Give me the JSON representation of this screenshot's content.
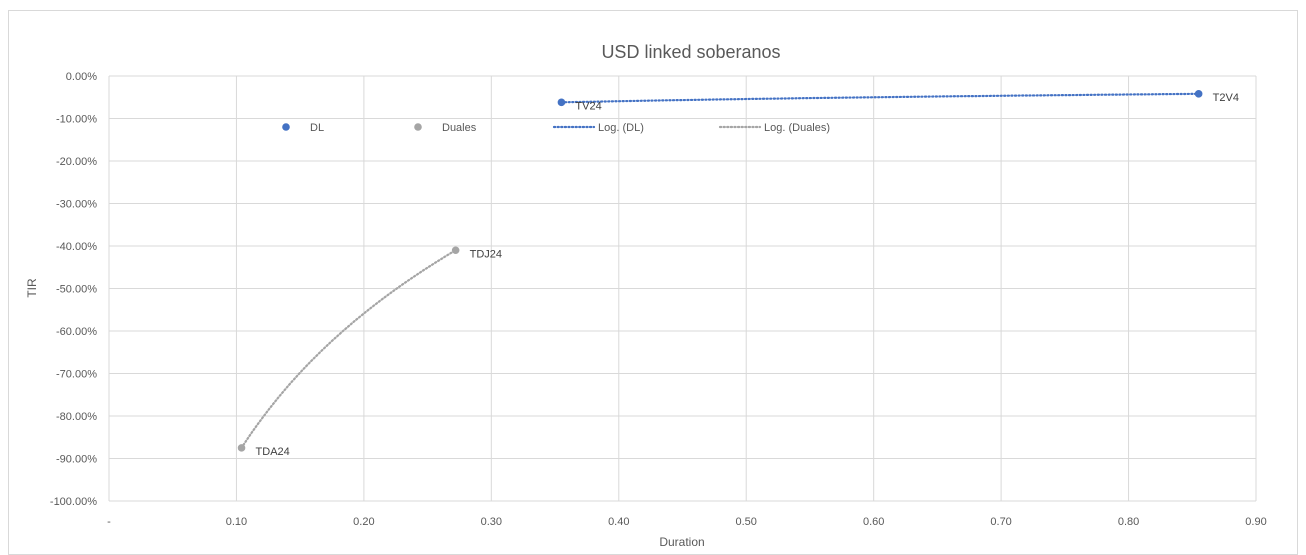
{
  "chart_data": {
    "type": "scatter",
    "title": "USD linked soberanos",
    "xlabel": "Duration",
    "ylabel": "TIR",
    "xlim": [
      0,
      0.9
    ],
    "ylim": [
      -1.0,
      0.0
    ],
    "x_ticks": [
      {
        "value": 0,
        "label": "-"
      },
      {
        "value": 0.1,
        "label": "0.10"
      },
      {
        "value": 0.2,
        "label": "0.20"
      },
      {
        "value": 0.3,
        "label": "0.30"
      },
      {
        "value": 0.4,
        "label": "0.40"
      },
      {
        "value": 0.5,
        "label": "0.50"
      },
      {
        "value": 0.6,
        "label": "0.60"
      },
      {
        "value": 0.7,
        "label": "0.70"
      },
      {
        "value": 0.8,
        "label": "0.80"
      },
      {
        "value": 0.9,
        "label": "0.90"
      }
    ],
    "y_ticks": [
      {
        "value": 0.0,
        "label": "0.00%"
      },
      {
        "value": -0.1,
        "label": "-10.00%"
      },
      {
        "value": -0.2,
        "label": "-20.00%"
      },
      {
        "value": -0.3,
        "label": "-30.00%"
      },
      {
        "value": -0.4,
        "label": "-40.00%"
      },
      {
        "value": -0.5,
        "label": "-50.00%"
      },
      {
        "value": -0.6,
        "label": "-60.00%"
      },
      {
        "value": -0.7,
        "label": "-70.00%"
      },
      {
        "value": -0.8,
        "label": "-80.00%"
      },
      {
        "value": -0.9,
        "label": "-90.00%"
      },
      {
        "value": -1.0,
        "label": "-100.00%"
      }
    ],
    "grid": true,
    "legend_position": "top",
    "series": [
      {
        "name": "DL",
        "color": "#4472c4",
        "points": [
          {
            "x": 0.355,
            "y": -0.062,
            "label": "TV24"
          },
          {
            "x": 0.855,
            "y": -0.042,
            "label": "T2V4"
          }
        ],
        "trendline": {
          "name": "Log. (DL)",
          "kind": "logarithmic"
        }
      },
      {
        "name": "Duales",
        "color": "#a5a5a5",
        "points": [
          {
            "x": 0.104,
            "y": -0.875,
            "label": "TDA24"
          },
          {
            "x": 0.272,
            "y": -0.41,
            "label": "TDJ24"
          }
        ],
        "trendline": {
          "name": "Log. (Duales)",
          "kind": "logarithmic"
        }
      }
    ],
    "legend": [
      {
        "label": "DL",
        "marker": "dot",
        "color": "#4472c4"
      },
      {
        "label": "Duales",
        "marker": "dot",
        "color": "#a5a5a5"
      },
      {
        "label": "Log. (DL)",
        "marker": "dotted-line",
        "color": "#4472c4"
      },
      {
        "label": "Log. (Duales)",
        "marker": "dotted-line",
        "color": "#a5a5a5"
      }
    ]
  }
}
